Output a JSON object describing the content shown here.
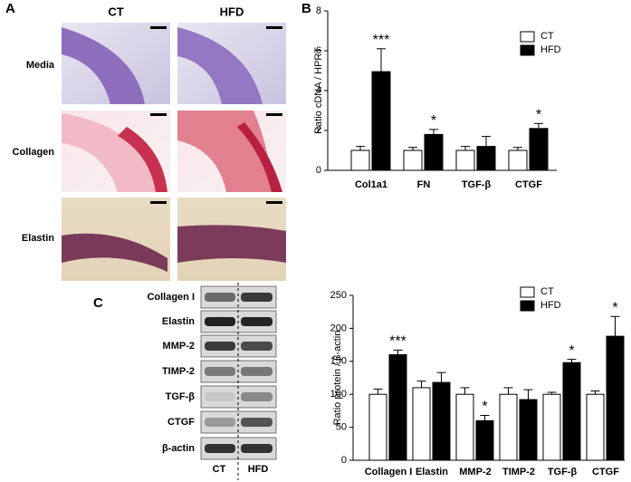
{
  "panel_labels": [
    "A",
    "B",
    "C"
  ],
  "histology": {
    "columns": [
      "CT",
      "HFD"
    ],
    "rows": [
      "Media",
      "Collagen",
      "Elastin"
    ]
  },
  "blot": {
    "rows": [
      "Collagen I",
      "Elastin",
      "MMP-2",
      "TIMP-2",
      "TGF-β",
      "CTGF",
      "β-actin"
    ],
    "lanes": [
      "CT",
      "HFD"
    ]
  },
  "chart_data": [
    {
      "type": "bar",
      "ylabel": "Ratio cDNA / HPRT",
      "categories": [
        "Col1a1",
        "FN",
        "TGF-β",
        "CTGF"
      ],
      "series": [
        {
          "name": "CT",
          "color": "#ffffff",
          "values": [
            1,
            1,
            1,
            1
          ],
          "errors": [
            0.2,
            0.15,
            0.2,
            0.15
          ]
        },
        {
          "name": "HFD",
          "color": "#000000",
          "values": [
            4.95,
            1.8,
            1.2,
            2.1
          ],
          "errors": [
            1.15,
            0.25,
            0.5,
            0.25
          ],
          "significance": [
            "***",
            "*",
            null,
            "*"
          ]
        }
      ],
      "ylim": [
        0,
        8
      ],
      "yticks": [
        0,
        2,
        4,
        6,
        8
      ],
      "legend": "upper right"
    },
    {
      "type": "bar",
      "ylabel": "Ratio protein / β-actin",
      "categories": [
        "Collagen I",
        "Elastin",
        "MMP-2",
        "TIMP-2",
        "TGF-β",
        "CTGF"
      ],
      "series": [
        {
          "name": "CT",
          "color": "#ffffff",
          "values": [
            100,
            110,
            100,
            100,
            100,
            100
          ],
          "errors": [
            8,
            10,
            10,
            10,
            3,
            5
          ]
        },
        {
          "name": "HFD",
          "color": "#000000",
          "values": [
            160,
            118,
            60,
            92,
            148,
            188
          ],
          "errors": [
            7,
            15,
            8,
            15,
            5,
            30
          ],
          "significance": [
            "***",
            null,
            "*",
            null,
            "*",
            "*"
          ]
        }
      ],
      "ylim": [
        0,
        250
      ],
      "yticks": [
        0,
        50,
        100,
        150,
        200,
        250
      ],
      "legend": "upper right"
    }
  ]
}
